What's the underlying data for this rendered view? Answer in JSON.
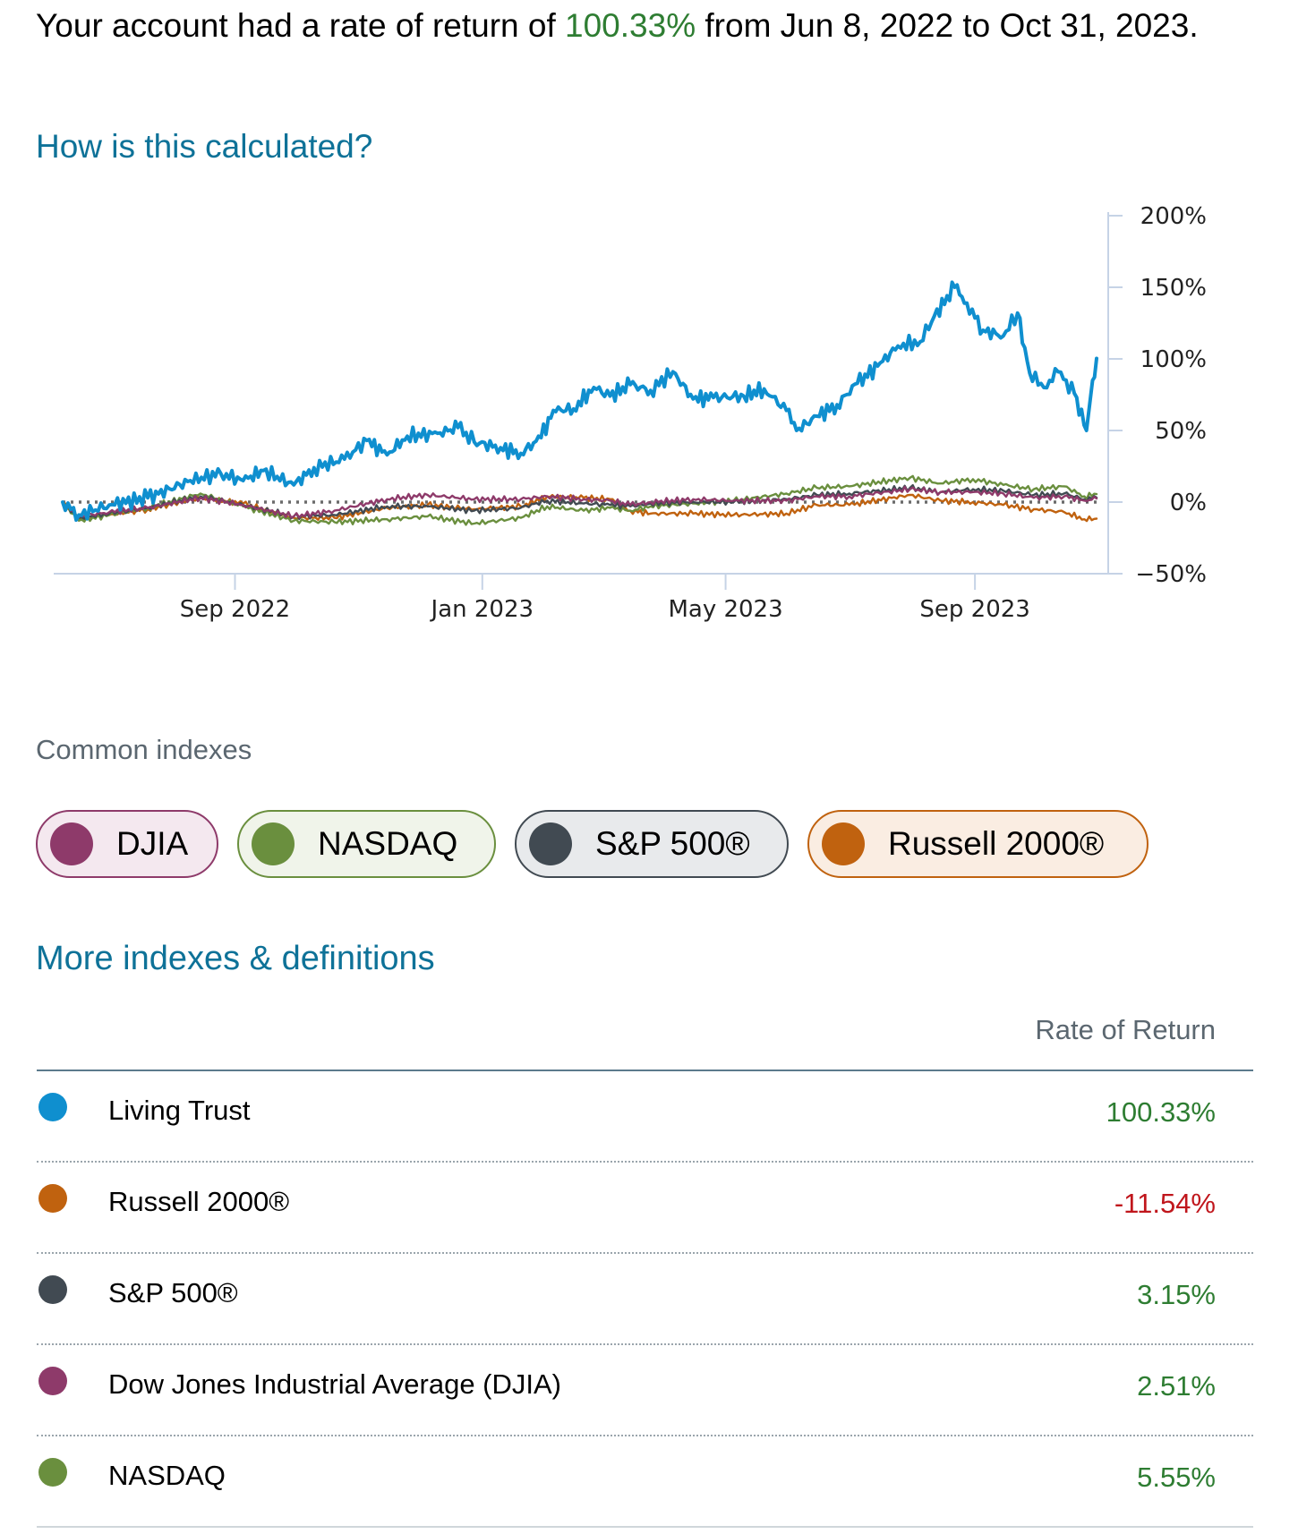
{
  "summary": {
    "prefix": "Your account had a rate of return of ",
    "rate": "100.33%",
    "suffix": " from Jun 8, 2022 to Oct 31, 2023."
  },
  "links": {
    "how_calculated": "How is this calculated?",
    "more_indexes": "More indexes & definitions"
  },
  "indexes": {
    "heading": "Common indexes",
    "chips": [
      {
        "label": "DJIA",
        "color": "#8e3a6a",
        "bg": "#f4e8ef"
      },
      {
        "label": "NASDAQ",
        "color": "#6a8f3e",
        "bg": "#f0f4ea"
      },
      {
        "label": "S&P 500®",
        "color": "#414a52",
        "bg": "#e8eaec"
      },
      {
        "label": "Russell 2000®",
        "color": "#c0620f",
        "bg": "#faede2"
      }
    ]
  },
  "table": {
    "header": "Rate of Return",
    "rows": [
      {
        "name": "Living Trust",
        "value": "100.33%",
        "dot": "#0f8fcf",
        "value_color": "#2e7d32"
      },
      {
        "name": "Russell 2000®",
        "value": "-11.54%",
        "dot": "#c0620f",
        "value_color": "#c0161c"
      },
      {
        "name": "S&P 500®",
        "value": "3.15%",
        "dot": "#414a52",
        "value_color": "#2e7d32"
      },
      {
        "name": "Dow Jones Industrial Average (DJIA)",
        "value": "2.51%",
        "dot": "#8e3a6a",
        "value_color": "#2e7d32"
      },
      {
        "name": "NASDAQ",
        "value": "5.55%",
        "dot": "#6a8f3e",
        "value_color": "#2e7d32"
      }
    ]
  },
  "chart_data": {
    "type": "line",
    "title": "",
    "xlabel": "",
    "ylabel": "",
    "x_range": [
      "2022-06-08",
      "2023-10-31"
    ],
    "ylim": [
      -50,
      200
    ],
    "y_ticks": [
      -50,
      0,
      50,
      100,
      150,
      200
    ],
    "y_tick_labels": [
      "−50%",
      "0%",
      "50%",
      "100%",
      "150%",
      "200%"
    ],
    "x_ticks": [
      {
        "date": "2022-09-01",
        "label": "Sep 2022"
      },
      {
        "date": "2023-01-01",
        "label": "Jan 2023"
      },
      {
        "date": "2023-05-01",
        "label": "May 2023"
      },
      {
        "date": "2023-09-01",
        "label": "Sep 2023"
      }
    ],
    "baseline": 0,
    "series": [
      {
        "name": "Russell 2000®",
        "color": "#c0620f",
        "points": [
          [
            "2022-06-08",
            0
          ],
          [
            "2022-06-16",
            -12
          ],
          [
            "2022-07-01",
            -9
          ],
          [
            "2022-07-20",
            -5
          ],
          [
            "2022-08-15",
            3
          ],
          [
            "2022-09-05",
            -1
          ],
          [
            "2022-09-30",
            -11
          ],
          [
            "2022-10-20",
            -11
          ],
          [
            "2022-11-15",
            -4
          ],
          [
            "2022-12-05",
            -2
          ],
          [
            "2022-12-28",
            -5
          ],
          [
            "2023-01-20",
            -3
          ],
          [
            "2023-02-02",
            4
          ],
          [
            "2023-02-20",
            3
          ],
          [
            "2023-03-05",
            2
          ],
          [
            "2023-03-15",
            -6
          ],
          [
            "2023-03-25",
            -8
          ],
          [
            "2023-04-15",
            -8
          ],
          [
            "2023-05-05",
            -9
          ],
          [
            "2023-05-31",
            -8
          ],
          [
            "2023-06-15",
            -2
          ],
          [
            "2023-07-01",
            -2
          ],
          [
            "2023-07-31",
            5
          ],
          [
            "2023-08-15",
            1
          ],
          [
            "2023-08-31",
            0
          ],
          [
            "2023-09-15",
            -2
          ],
          [
            "2023-09-30",
            -5
          ],
          [
            "2023-10-15",
            -7
          ],
          [
            "2023-10-25",
            -12
          ],
          [
            "2023-10-31",
            -11.54
          ]
        ]
      },
      {
        "name": "NASDAQ",
        "color": "#6a8f3e",
        "points": [
          [
            "2022-06-08",
            0
          ],
          [
            "2022-06-16",
            -13
          ],
          [
            "2022-07-01",
            -9
          ],
          [
            "2022-07-20",
            -4
          ],
          [
            "2022-08-15",
            6
          ],
          [
            "2022-09-05",
            -3
          ],
          [
            "2022-09-30",
            -13
          ],
          [
            "2022-10-20",
            -14
          ],
          [
            "2022-11-15",
            -12
          ],
          [
            "2022-12-05",
            -10
          ],
          [
            "2022-12-28",
            -15
          ],
          [
            "2023-01-20",
            -11
          ],
          [
            "2023-02-02",
            -3
          ],
          [
            "2023-02-20",
            -6
          ],
          [
            "2023-03-05",
            -4
          ],
          [
            "2023-03-15",
            -6
          ],
          [
            "2023-03-25",
            -3
          ],
          [
            "2023-04-15",
            -1
          ],
          [
            "2023-05-05",
            1
          ],
          [
            "2023-05-31",
            6
          ],
          [
            "2023-06-15",
            10
          ],
          [
            "2023-07-01",
            11
          ],
          [
            "2023-07-31",
            17
          ],
          [
            "2023-08-15",
            13
          ],
          [
            "2023-08-31",
            16
          ],
          [
            "2023-09-15",
            12
          ],
          [
            "2023-09-30",
            9
          ],
          [
            "2023-10-15",
            11
          ],
          [
            "2023-10-25",
            4
          ],
          [
            "2023-10-31",
            5.55
          ]
        ]
      },
      {
        "name": "S&P 500®",
        "color": "#414a52",
        "points": [
          [
            "2022-06-08",
            0
          ],
          [
            "2022-06-16",
            -11
          ],
          [
            "2022-07-01",
            -8
          ],
          [
            "2022-07-20",
            -4
          ],
          [
            "2022-08-15",
            4
          ],
          [
            "2022-09-05",
            -2
          ],
          [
            "2022-09-30",
            -10
          ],
          [
            "2022-10-20",
            -9
          ],
          [
            "2022-11-15",
            -3
          ],
          [
            "2022-12-05",
            -3
          ],
          [
            "2022-12-28",
            -6
          ],
          [
            "2023-01-20",
            -4
          ],
          [
            "2023-02-02",
            1
          ],
          [
            "2023-02-20",
            -1
          ],
          [
            "2023-03-05",
            -2
          ],
          [
            "2023-03-15",
            -3
          ],
          [
            "2023-03-25",
            -1
          ],
          [
            "2023-04-15",
            0
          ],
          [
            "2023-05-05",
            0
          ],
          [
            "2023-05-31",
            2
          ],
          [
            "2023-06-15",
            5
          ],
          [
            "2023-07-01",
            6
          ],
          [
            "2023-07-31",
            10
          ],
          [
            "2023-08-15",
            7
          ],
          [
            "2023-08-31",
            9
          ],
          [
            "2023-09-15",
            8
          ],
          [
            "2023-09-30",
            5
          ],
          [
            "2023-10-15",
            6
          ],
          [
            "2023-10-25",
            2
          ],
          [
            "2023-10-31",
            3.15
          ]
        ]
      },
      {
        "name": "Dow Jones Industrial Average (DJIA)",
        "color": "#8e3a6a",
        "points": [
          [
            "2022-06-08",
            0
          ],
          [
            "2022-06-16",
            -10
          ],
          [
            "2022-07-01",
            -7
          ],
          [
            "2022-07-20",
            -4
          ],
          [
            "2022-08-15",
            3
          ],
          [
            "2022-09-05",
            -2
          ],
          [
            "2022-09-30",
            -10
          ],
          [
            "2022-10-20",
            -6
          ],
          [
            "2022-11-15",
            2
          ],
          [
            "2022-12-05",
            5
          ],
          [
            "2022-12-28",
            2
          ],
          [
            "2023-01-20",
            2
          ],
          [
            "2023-02-02",
            4
          ],
          [
            "2023-02-20",
            2
          ],
          [
            "2023-03-05",
            1
          ],
          [
            "2023-03-15",
            -2
          ],
          [
            "2023-03-25",
            0
          ],
          [
            "2023-04-15",
            2
          ],
          [
            "2023-05-05",
            1
          ],
          [
            "2023-05-31",
            1
          ],
          [
            "2023-06-15",
            4
          ],
          [
            "2023-07-01",
            4
          ],
          [
            "2023-07-31",
            9
          ],
          [
            "2023-08-15",
            7
          ],
          [
            "2023-08-31",
            7
          ],
          [
            "2023-09-15",
            6
          ],
          [
            "2023-09-30",
            3
          ],
          [
            "2023-10-15",
            4
          ],
          [
            "2023-10-25",
            1
          ],
          [
            "2023-10-31",
            2.51
          ]
        ]
      },
      {
        "name": "Living Trust",
        "color": "#0f8fcf",
        "points": [
          [
            "2022-06-08",
            0
          ],
          [
            "2022-06-16",
            -9
          ],
          [
            "2022-07-01",
            -2
          ],
          [
            "2022-07-20",
            3
          ],
          [
            "2022-08-10",
            15
          ],
          [
            "2022-08-25",
            20
          ],
          [
            "2022-09-05",
            15
          ],
          [
            "2022-09-15",
            22
          ],
          [
            "2022-09-30",
            12
          ],
          [
            "2022-10-10",
            24
          ],
          [
            "2022-10-25",
            30
          ],
          [
            "2022-11-05",
            43
          ],
          [
            "2022-11-15",
            33
          ],
          [
            "2022-11-25",
            46
          ],
          [
            "2022-12-10",
            48
          ],
          [
            "2022-12-20",
            52
          ],
          [
            "2022-12-28",
            42
          ],
          [
            "2023-01-10",
            38
          ],
          [
            "2023-01-20",
            34
          ],
          [
            "2023-01-30",
            45
          ],
          [
            "2023-02-05",
            64
          ],
          [
            "2023-02-15",
            65
          ],
          [
            "2023-02-25",
            80
          ],
          [
            "2023-03-05",
            74
          ],
          [
            "2023-03-15",
            82
          ],
          [
            "2023-03-25",
            78
          ],
          [
            "2023-04-05",
            91
          ],
          [
            "2023-04-15",
            72
          ],
          [
            "2023-04-25",
            73
          ],
          [
            "2023-05-10",
            74
          ],
          [
            "2023-05-20",
            79
          ],
          [
            "2023-05-31",
            64
          ],
          [
            "2023-06-05",
            50
          ],
          [
            "2023-06-15",
            60
          ],
          [
            "2023-06-25",
            68
          ],
          [
            "2023-07-05",
            83
          ],
          [
            "2023-07-15",
            95
          ],
          [
            "2023-07-25",
            109
          ],
          [
            "2023-08-05",
            112
          ],
          [
            "2023-08-12",
            130
          ],
          [
            "2023-08-22",
            150
          ],
          [
            "2023-08-28",
            139
          ],
          [
            "2023-09-05",
            120
          ],
          [
            "2023-09-15",
            116
          ],
          [
            "2023-09-22",
            132
          ],
          [
            "2023-09-28",
            90
          ],
          [
            "2023-10-05",
            80
          ],
          [
            "2023-10-12",
            91
          ],
          [
            "2023-10-20",
            76
          ],
          [
            "2023-10-26",
            50
          ],
          [
            "2023-10-29",
            85
          ],
          [
            "2023-10-31",
            100.33
          ]
        ]
      }
    ]
  }
}
